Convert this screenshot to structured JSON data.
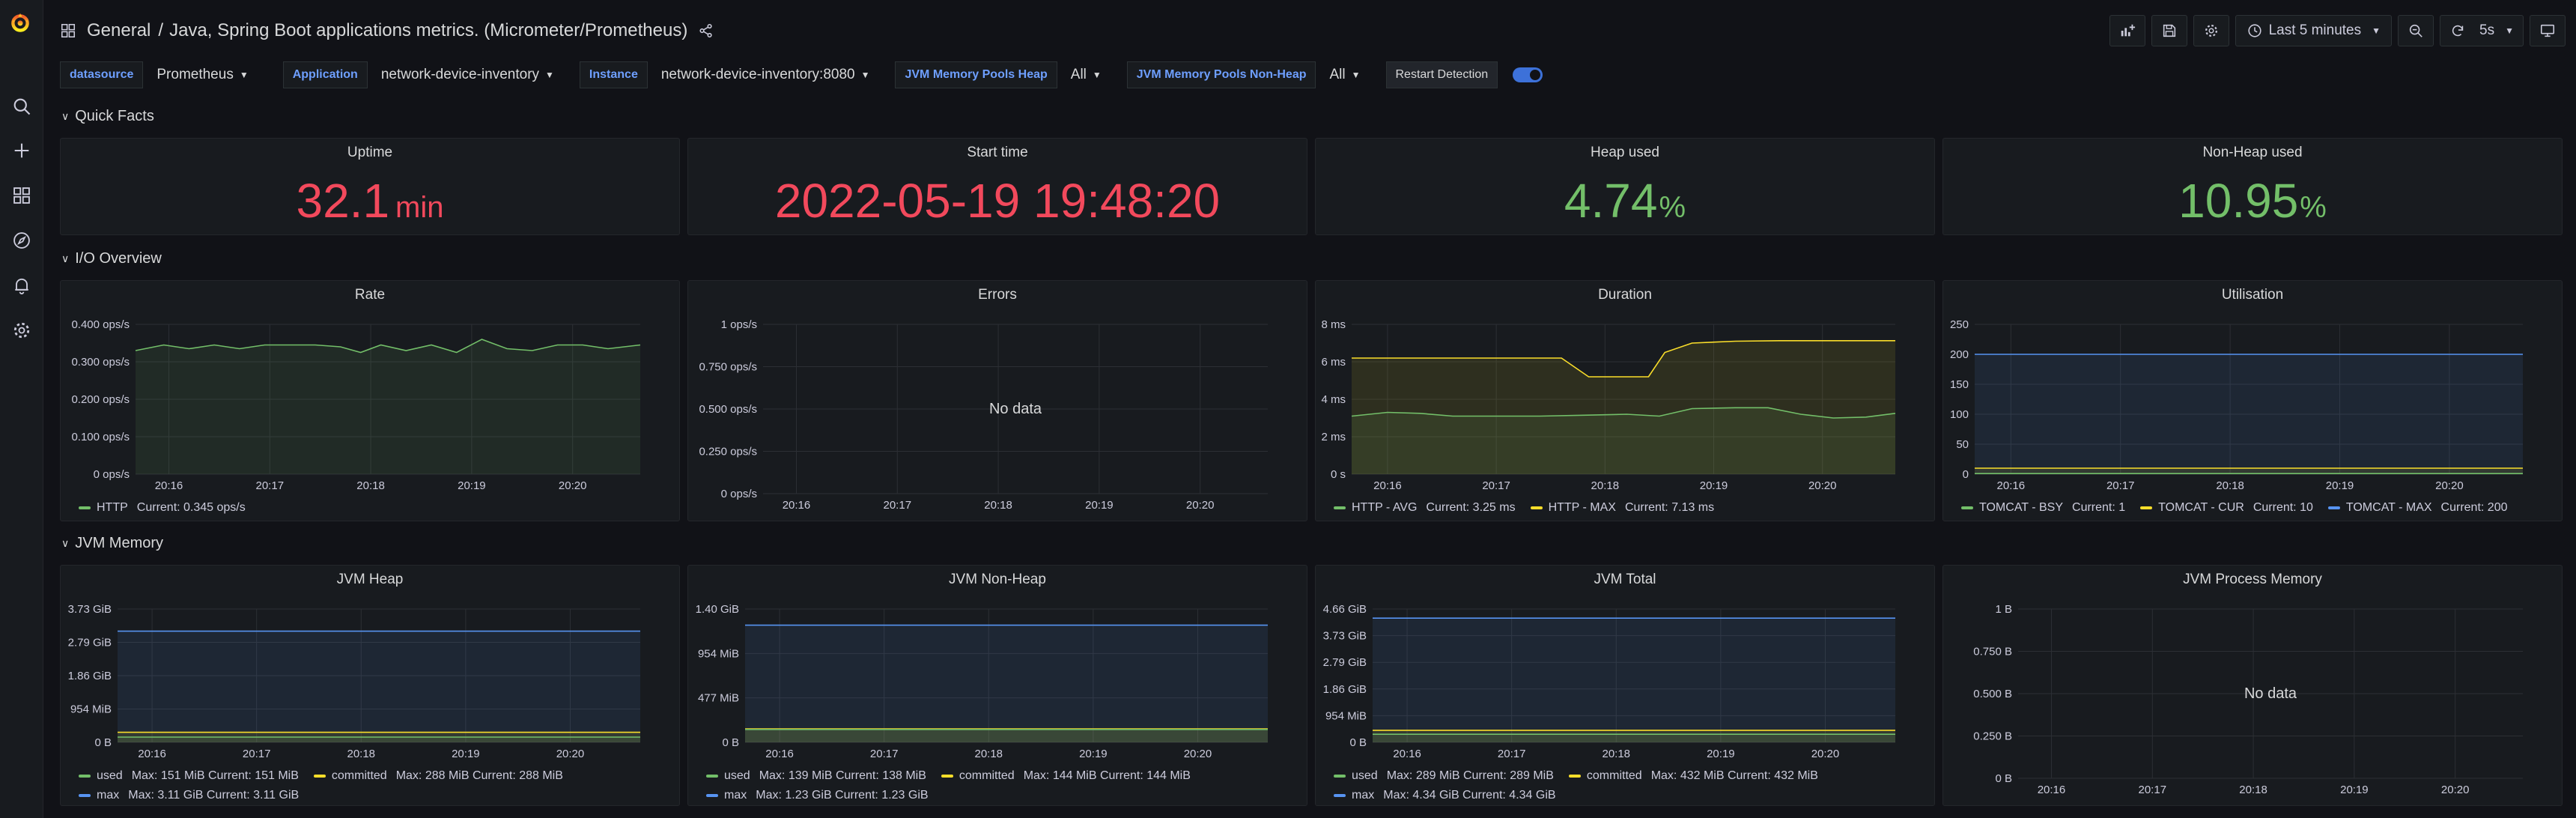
{
  "header": {
    "folder": "General",
    "separator": "/",
    "title": "Java, Spring Boot applications metrics. (Micrometer/Prometheus)"
  },
  "toolbar": {
    "time_range": "Last 5 minutes",
    "refresh_interval": "5s"
  },
  "variables": [
    {
      "label": "datasource",
      "value": "Prometheus"
    },
    {
      "label": "Application",
      "value": "network-device-inventory"
    },
    {
      "label": "Instance",
      "value": "network-device-inventory:8080"
    },
    {
      "label": "JVM Memory Pools Heap",
      "value": "All"
    },
    {
      "label": "JVM Memory Pools Non-Heap",
      "value": "All"
    }
  ],
  "restart_detection": {
    "label": "Restart Detection",
    "enabled": true
  },
  "rows": {
    "quick_facts": "Quick Facts",
    "io_overview": "I/O Overview",
    "jvm_memory": "JVM Memory"
  },
  "stats": [
    {
      "title": "Uptime",
      "value": "32.1",
      "unit": "min",
      "color": "#f2495c"
    },
    {
      "title": "Start time",
      "value": "2022-05-19 19:48:20",
      "unit": "",
      "color": "#f2495c"
    },
    {
      "title": "Heap used",
      "value": "4.74",
      "unit": "%",
      "color": "#73bf69"
    },
    {
      "title": "Non-Heap used",
      "value": "10.95",
      "unit": "%",
      "color": "#73bf69"
    }
  ],
  "chart_data": [
    {
      "type": "line",
      "title": "Rate",
      "x": [
        "20:16",
        "20:17",
        "20:18",
        "20:19",
        "20:20"
      ],
      "y_ticks": [
        "0 ops/s",
        "0.100 ops/s",
        "0.200 ops/s",
        "0.300 ops/s",
        "0.400 ops/s"
      ],
      "ylim": [
        0,
        0.4
      ],
      "xlim_minutes": [
        15.67,
        20.67
      ],
      "series": [
        {
          "name": "HTTP",
          "current": "Current: 0.345 ops/s",
          "color": "#73bf69",
          "points": [
            [
              15.67,
              0.33
            ],
            [
              15.95,
              0.345
            ],
            [
              16.2,
              0.335
            ],
            [
              16.45,
              0.345
            ],
            [
              16.7,
              0.335
            ],
            [
              16.95,
              0.345
            ],
            [
              17.2,
              0.345
            ],
            [
              17.45,
              0.345
            ],
            [
              17.7,
              0.34
            ],
            [
              17.9,
              0.325
            ],
            [
              18.1,
              0.345
            ],
            [
              18.35,
              0.33
            ],
            [
              18.6,
              0.345
            ],
            [
              18.85,
              0.325
            ],
            [
              19.1,
              0.36
            ],
            [
              19.35,
              0.335
            ],
            [
              19.6,
              0.33
            ],
            [
              19.85,
              0.345
            ],
            [
              20.1,
              0.345
            ],
            [
              20.35,
              0.335
            ],
            [
              20.67,
              0.345
            ]
          ]
        }
      ]
    },
    {
      "type": "line",
      "title": "Errors",
      "x": [
        "20:16",
        "20:17",
        "20:18",
        "20:19",
        "20:20"
      ],
      "y_ticks": [
        "0 ops/s",
        "0.250 ops/s",
        "0.500 ops/s",
        "0.750 ops/s",
        "1 ops/s"
      ],
      "ylim": [
        0,
        1
      ],
      "xlim_minutes": [
        15.67,
        20.67
      ],
      "message": "No data",
      "series": []
    },
    {
      "type": "line",
      "title": "Duration",
      "x": [
        "20:16",
        "20:17",
        "20:18",
        "20:19",
        "20:20"
      ],
      "y_ticks": [
        "0 s",
        "2 ms",
        "4 ms",
        "6 ms",
        "8 ms"
      ],
      "ylim": [
        0,
        8
      ],
      "xlim_minutes": [
        15.67,
        20.67
      ],
      "series": [
        {
          "name": "HTTP - AVG",
          "current": "Current: 3.25 ms",
          "color": "#73bf69",
          "points": [
            [
              15.67,
              3.1
            ],
            [
              16.0,
              3.3
            ],
            [
              16.3,
              3.25
            ],
            [
              16.6,
              3.1
            ],
            [
              17.0,
              3.1
            ],
            [
              17.4,
              3.1
            ],
            [
              17.8,
              3.15
            ],
            [
              18.2,
              3.2
            ],
            [
              18.5,
              3.1
            ],
            [
              18.8,
              3.5
            ],
            [
              19.2,
              3.55
            ],
            [
              19.5,
              3.55
            ],
            [
              19.8,
              3.2
            ],
            [
              20.1,
              3.0
            ],
            [
              20.4,
              3.05
            ],
            [
              20.67,
              3.25
            ]
          ]
        },
        {
          "name": "HTTP - MAX",
          "current": "Current: 7.13 ms",
          "color": "#fade2a",
          "points": [
            [
              15.67,
              6.2
            ],
            [
              16.2,
              6.2
            ],
            [
              17.0,
              6.2
            ],
            [
              17.6,
              6.2
            ],
            [
              17.85,
              5.2
            ],
            [
              18.2,
              5.2
            ],
            [
              18.4,
              5.2
            ],
            [
              18.55,
              6.5
            ],
            [
              18.8,
              7.0
            ],
            [
              19.2,
              7.1
            ],
            [
              19.6,
              7.13
            ],
            [
              20.0,
              7.13
            ],
            [
              20.67,
              7.13
            ]
          ]
        }
      ]
    },
    {
      "type": "line",
      "title": "Utilisation",
      "x": [
        "20:16",
        "20:17",
        "20:18",
        "20:19",
        "20:20"
      ],
      "y_ticks": [
        "0",
        "50",
        "100",
        "150",
        "200",
        "250"
      ],
      "ylim": [
        0,
        250
      ],
      "xlim_minutes": [
        15.67,
        20.67
      ],
      "series": [
        {
          "name": "TOMCAT - BSY",
          "current": "Current: 1",
          "color": "#73bf69",
          "points": [
            [
              15.67,
              1
            ],
            [
              20.67,
              1
            ]
          ]
        },
        {
          "name": "TOMCAT - CUR",
          "current": "Current: 10",
          "color": "#fade2a",
          "points": [
            [
              15.67,
              10
            ],
            [
              20.67,
              10
            ]
          ]
        },
        {
          "name": "TOMCAT - MAX",
          "current": "Current: 200",
          "color": "#5794f2",
          "points": [
            [
              15.67,
              200
            ],
            [
              20.67,
              200
            ]
          ]
        }
      ]
    },
    {
      "type": "line",
      "title": "JVM Heap",
      "x": [
        "20:16",
        "20:17",
        "20:18",
        "20:19",
        "20:20"
      ],
      "y_ticks": [
        "0 B",
        "954 MiB",
        "1.86 GiB",
        "2.79 GiB",
        "3.73 GiB"
      ],
      "ylim": [
        0,
        3.73
      ],
      "xlim_minutes": [
        15.67,
        20.67
      ],
      "series": [
        {
          "name": "used",
          "current": "Max: 151 MiB  Current: 151 MiB",
          "color": "#73bf69",
          "points": [
            [
              15.67,
              0.147
            ],
            [
              20.67,
              0.147
            ]
          ]
        },
        {
          "name": "committed",
          "current": "Max: 288 MiB  Current: 288 MiB",
          "color": "#fade2a",
          "points": [
            [
              15.67,
              0.281
            ],
            [
              20.67,
              0.281
            ]
          ]
        },
        {
          "name": "max",
          "current": "Max: 3.11 GiB  Current: 3.11 GiB",
          "color": "#5794f2",
          "points": [
            [
              15.67,
              3.11
            ],
            [
              20.67,
              3.11
            ]
          ]
        }
      ]
    },
    {
      "type": "line",
      "title": "JVM Non-Heap",
      "x": [
        "20:16",
        "20:17",
        "20:18",
        "20:19",
        "20:20"
      ],
      "y_ticks": [
        "0 B",
        "477 MiB",
        "954 MiB",
        "1.40 GiB"
      ],
      "ylim": [
        0,
        1.4
      ],
      "xlim_minutes": [
        15.67,
        20.67
      ],
      "series": [
        {
          "name": "used",
          "current": "Max: 139 MiB  Current: 138 MiB",
          "color": "#73bf69",
          "points": [
            [
              15.67,
              0.135
            ],
            [
              20.67,
              0.135
            ]
          ]
        },
        {
          "name": "committed",
          "current": "Max: 144 MiB  Current: 144 MiB",
          "color": "#fade2a",
          "points": [
            [
              15.67,
              0.141
            ],
            [
              20.67,
              0.141
            ]
          ]
        },
        {
          "name": "max",
          "current": "Max: 1.23 GiB  Current: 1.23 GiB",
          "color": "#5794f2",
          "points": [
            [
              15.67,
              1.23
            ],
            [
              20.67,
              1.23
            ]
          ]
        }
      ]
    },
    {
      "type": "line",
      "title": "JVM Total",
      "x": [
        "20:16",
        "20:17",
        "20:18",
        "20:19",
        "20:20"
      ],
      "y_ticks": [
        "0 B",
        "954 MiB",
        "1.86 GiB",
        "2.79 GiB",
        "3.73 GiB",
        "4.66 GiB"
      ],
      "ylim": [
        0,
        4.66
      ],
      "xlim_minutes": [
        15.67,
        20.67
      ],
      "series": [
        {
          "name": "used",
          "current": "Max: 289 MiB  Current: 289 MiB",
          "color": "#73bf69",
          "points": [
            [
              15.67,
              0.282
            ],
            [
              20.67,
              0.282
            ]
          ]
        },
        {
          "name": "committed",
          "current": "Max: 432 MiB  Current: 432 MiB",
          "color": "#fade2a",
          "points": [
            [
              15.67,
              0.422
            ],
            [
              20.67,
              0.422
            ]
          ]
        },
        {
          "name": "max",
          "current": "Max: 4.34 GiB  Current: 4.34 GiB",
          "color": "#5794f2",
          "points": [
            [
              15.67,
              4.34
            ],
            [
              20.67,
              4.34
            ]
          ]
        }
      ]
    },
    {
      "type": "line",
      "title": "JVM Process Memory",
      "x": [
        "20:16",
        "20:17",
        "20:18",
        "20:19",
        "20:20"
      ],
      "y_ticks": [
        "0 B",
        "0.250 B",
        "0.500 B",
        "0.750 B",
        "1 B"
      ],
      "ylim": [
        0,
        1
      ],
      "xlim_minutes": [
        15.67,
        20.67
      ],
      "message": "No data",
      "series": []
    }
  ]
}
